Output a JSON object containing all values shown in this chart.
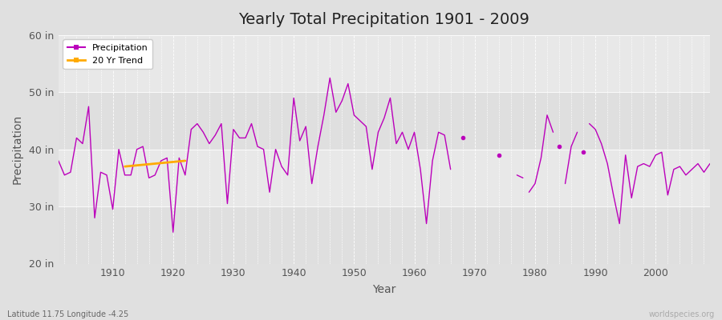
{
  "title": "Yearly Total Precipitation 1901 - 2009",
  "xlabel": "Year",
  "ylabel": "Precipitation",
  "xlim": [
    1901,
    2009
  ],
  "ylim": [
    20,
    60
  ],
  "yticks": [
    20,
    30,
    40,
    50,
    60
  ],
  "ytick_labels": [
    "20 in",
    "30 in",
    "40 in",
    "50 in",
    "60 in"
  ],
  "xticks": [
    1910,
    1920,
    1930,
    1940,
    1950,
    1960,
    1970,
    1980,
    1990,
    2000
  ],
  "bg_outer": "#e0e0e0",
  "bg_inner": "#e8e8e8",
  "grid_color": "#ffffff",
  "line_color": "#bb00bb",
  "trend_color": "#ffaa00",
  "watermark": "worldspecies.org",
  "footnote": "Latitude 11.75 Longitude -4.25",
  "precipitation": {
    "1901": 38.0,
    "1902": 35.5,
    "1903": 36.0,
    "1904": 42.0,
    "1905": 41.0,
    "1906": 47.5,
    "1907": 28.0,
    "1908": 36.0,
    "1909": 35.5,
    "1910": 29.5,
    "1911": 40.0,
    "1912": 35.5,
    "1913": 35.5,
    "1914": 40.0,
    "1915": 40.5,
    "1916": 35.0,
    "1917": 35.5,
    "1918": 38.0,
    "1919": 38.5,
    "1920": 25.5,
    "1921": 38.5,
    "1922": 35.5,
    "1923": 43.5,
    "1924": 44.5,
    "1925": 43.0,
    "1926": 41.0,
    "1927": 42.5,
    "1928": 44.5,
    "1929": 30.5,
    "1930": 43.5,
    "1931": 42.0,
    "1932": 42.0,
    "1933": 44.5,
    "1934": 40.5,
    "1935": 40.0,
    "1936": 32.5,
    "1937": 40.0,
    "1938": 37.0,
    "1939": 35.5,
    "1940": 49.0,
    "1941": 41.5,
    "1942": 44.0,
    "1943": 34.0,
    "1944": 40.5,
    "1945": 46.0,
    "1946": 52.5,
    "1947": 46.5,
    "1948": 48.5,
    "1949": 51.5,
    "1950": 46.0,
    "1951": 45.0,
    "1952": 44.0,
    "1953": 36.5,
    "1954": 43.0,
    "1955": 45.5,
    "1956": 49.0,
    "1957": 41.0,
    "1958": 43.0,
    "1959": 40.0,
    "1960": 43.0,
    "1961": 36.5,
    "1962": 27.0,
    "1963": 38.0,
    "1964": 43.0,
    "1965": 42.5,
    "1966": 36.5,
    "1968": 42.0,
    "1974": 39.0,
    "1977": 35.5,
    "1978": 35.0,
    "1979": 32.5,
    "1980": 34.0,
    "1981": 38.5,
    "1982": 46.0,
    "1983": 43.0,
    "1984": 40.5,
    "1985": 34.0,
    "1986": 40.5,
    "1987": 43.0,
    "1988": 39.5,
    "1989": 44.5,
    "1990": 43.5,
    "1991": 41.0,
    "1992": 37.5,
    "1993": 32.0,
    "1994": 27.0,
    "1995": 39.0,
    "1996": 31.5,
    "1997": 37.0,
    "1998": 37.5,
    "1999": 37.0,
    "2000": 39.0,
    "2001": 39.5,
    "2002": 32.0,
    "2003": 36.5,
    "2004": 37.0,
    "2005": 35.5,
    "2006": 36.5,
    "2007": 37.5,
    "2008": 36.0,
    "2009": 37.5
  },
  "segments": [
    [
      1901,
      1902,
      1903,
      1904,
      1905,
      1906,
      1907,
      1908,
      1909,
      1910,
      1911,
      1912,
      1913,
      1914,
      1915,
      1916,
      1917,
      1918,
      1919,
      1920,
      1921,
      1922,
      1923,
      1924,
      1925,
      1926,
      1927,
      1928,
      1929,
      1930,
      1931,
      1932,
      1933,
      1934,
      1935,
      1936,
      1937,
      1938,
      1939,
      1940,
      1941,
      1942,
      1943,
      1944,
      1945,
      1946,
      1947,
      1948,
      1949,
      1950,
      1951,
      1952,
      1953,
      1954,
      1955,
      1956,
      1957,
      1958,
      1959,
      1960,
      1961,
      1962,
      1963,
      1964,
      1965,
      1966
    ],
    [
      1977,
      1978
    ],
    [
      1979,
      1980,
      1981,
      1982,
      1983
    ],
    [
      1985,
      1986,
      1987
    ],
    [
      1989,
      1990,
      1991,
      1992,
      1993,
      1994,
      1995,
      1996,
      1997,
      1998,
      1999,
      2000,
      2001,
      2002,
      2003,
      2004,
      2005,
      2006,
      2007,
      2008,
      2009
    ]
  ],
  "isolated_dots": [
    1968,
    1974,
    1984,
    1988
  ],
  "trend_years": [
    1912,
    1913,
    1914,
    1915,
    1916,
    1917,
    1918,
    1919,
    1920,
    1921,
    1922
  ],
  "trend_vals": [
    37.0,
    37.1,
    37.2,
    37.3,
    37.4,
    37.5,
    37.6,
    37.7,
    37.8,
    37.9,
    38.0
  ]
}
